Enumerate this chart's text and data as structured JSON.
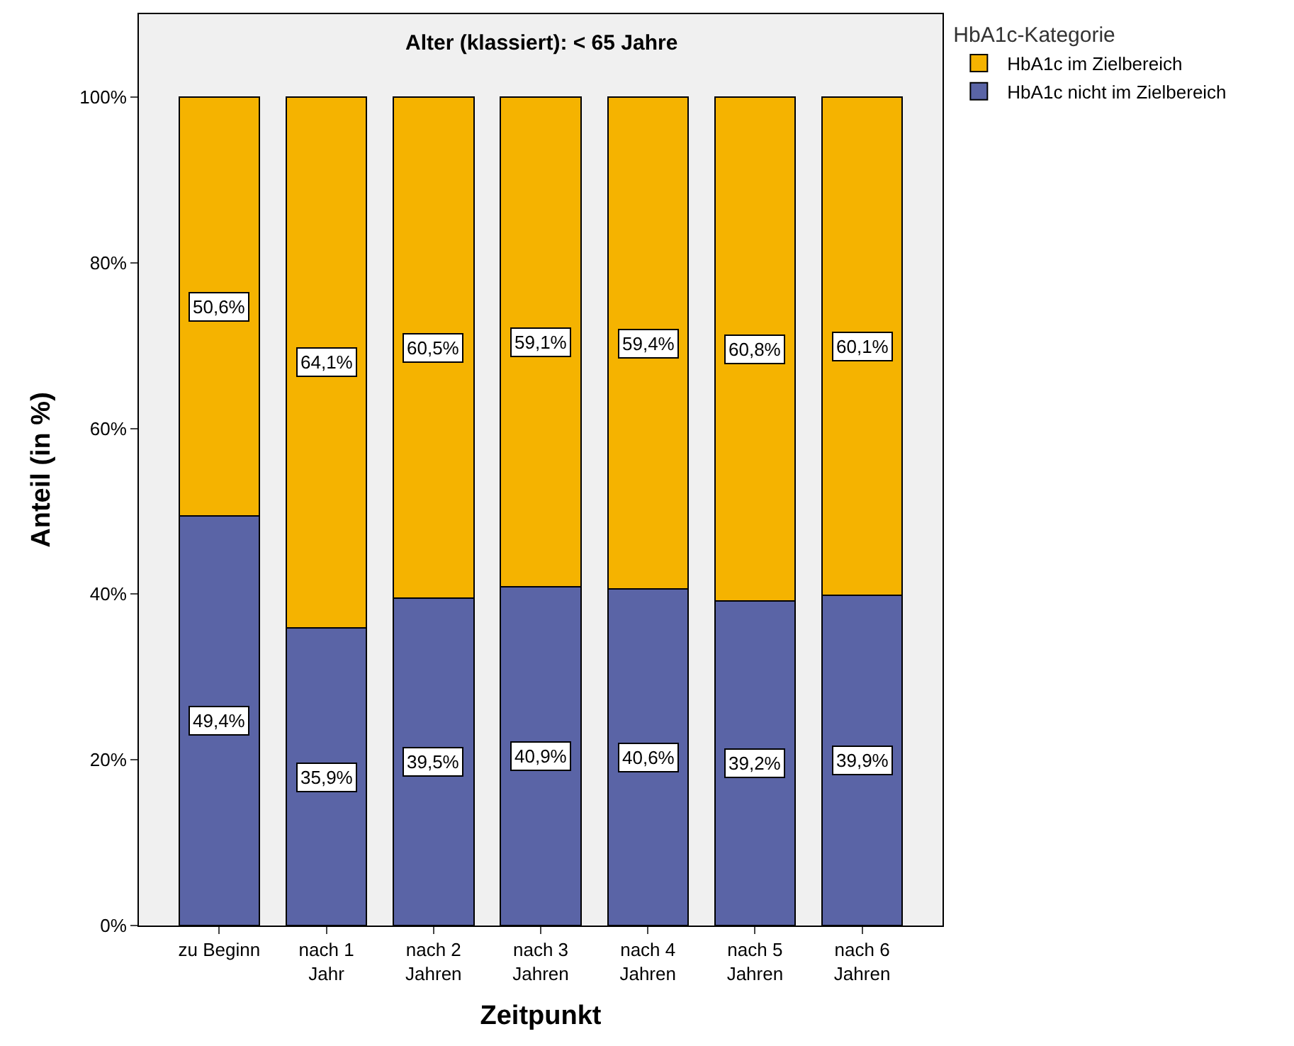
{
  "chart_data": {
    "type": "bar",
    "stacked": true,
    "title": "Alter (klassiert): < 65 Jahre",
    "xlabel": "Zeitpunkt",
    "ylabel": "Anteil (in %)",
    "legend_title": "HbA1c-Kategorie",
    "legend": "top right",
    "categories": [
      "zu Beginn",
      "nach 1\nJahr",
      "nach 2\nJahren",
      "nach 3\nJahren",
      "nach 4\nJahren",
      "nach 5\nJahren",
      "nach 6\nJahren"
    ],
    "series": [
      {
        "name": "HbA1c nicht im Zielbereich",
        "color": "#5a64a6",
        "values": [
          49.4,
          35.9,
          39.5,
          40.9,
          40.6,
          39.2,
          39.9
        ],
        "value_labels": [
          "49,4%",
          "35,9%",
          "39,5%",
          "40,9%",
          "40,6%",
          "39,2%",
          "39,9%"
        ]
      },
      {
        "name": "HbA1c im Zielbereich",
        "color": "#f5b300",
        "values": [
          50.6,
          64.1,
          60.5,
          59.1,
          59.4,
          60.8,
          60.1
        ],
        "value_labels": [
          "50,6%",
          "64,1%",
          "60,5%",
          "59,1%",
          "59,4%",
          "60,8%",
          "60,1%"
        ]
      }
    ],
    "ylim": [
      0,
      110
    ],
    "yticks": [
      {
        "value": 0,
        "label": "0%"
      },
      {
        "value": 20,
        "label": "20%"
      },
      {
        "value": 40,
        "label": "40%"
      },
      {
        "value": 60,
        "label": "60%"
      },
      {
        "value": 80,
        "label": "80%"
      },
      {
        "value": 100,
        "label": "100%"
      }
    ],
    "grid": false
  }
}
